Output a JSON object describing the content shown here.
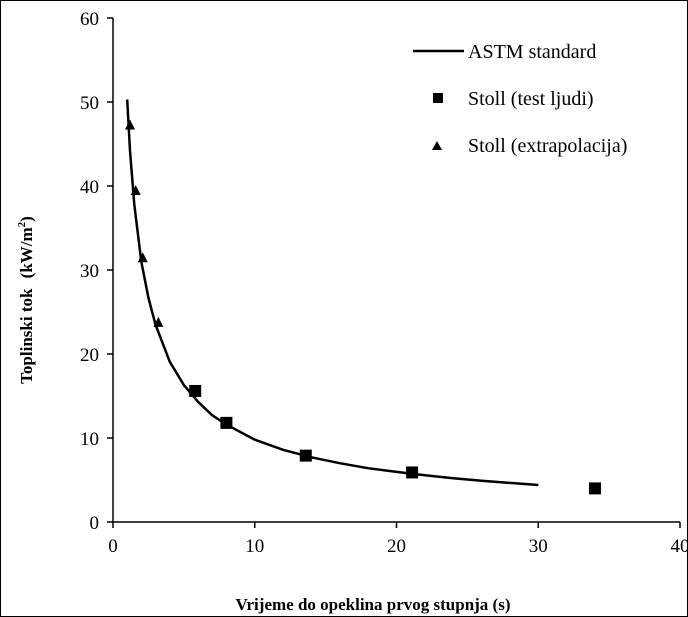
{
  "chart_data": {
    "type": "scatter",
    "title": "",
    "xlabel": "Vrijeme do opeklina prvog stupnja (s)",
    "ylabel": "Toplinski tok",
    "ylabel_unit": "(kW/m",
    "ylabel_unit_sup": "2",
    "ylabel_unit_close": ")",
    "xlim": [
      0,
      40
    ],
    "ylim": [
      0,
      60
    ],
    "xticks": [
      "0",
      "10",
      "20",
      "30",
      "40"
    ],
    "yticks": [
      "0",
      "10",
      "20",
      "30",
      "40",
      "50",
      "60"
    ],
    "legend_position": "top-right",
    "grid": false,
    "series": [
      {
        "name": "ASTM standard",
        "kind": "line",
        "color": "#000000",
        "x": [
          1.0,
          1.2,
          1.5,
          2,
          2.5,
          3,
          4,
          5,
          6,
          7,
          8,
          10,
          12,
          14,
          16,
          18,
          20,
          22,
          24,
          26,
          28,
          30
        ],
        "y": [
          50.3,
          44.2,
          37.8,
          31.0,
          26.7,
          23.5,
          19.1,
          16.3,
          14.3,
          12.7,
          11.6,
          9.8,
          8.6,
          7.7,
          7.0,
          6.4,
          5.96,
          5.56,
          5.21,
          4.91,
          4.65,
          4.41
        ]
      },
      {
        "name": "Stoll (test ljudi)",
        "kind": "square",
        "color": "#000000",
        "x": [
          5.8,
          8.0,
          13.6,
          21.1,
          34.0
        ],
        "y": [
          15.6,
          11.8,
          7.9,
          5.9,
          4.0
        ]
      },
      {
        "name": "Stoll (extrapolacija)",
        "kind": "triangle",
        "color": "#000000",
        "x": [
          1.2,
          1.6,
          2.1,
          3.2
        ],
        "y": [
          47.2,
          39.4,
          31.4,
          23.7
        ]
      }
    ]
  }
}
